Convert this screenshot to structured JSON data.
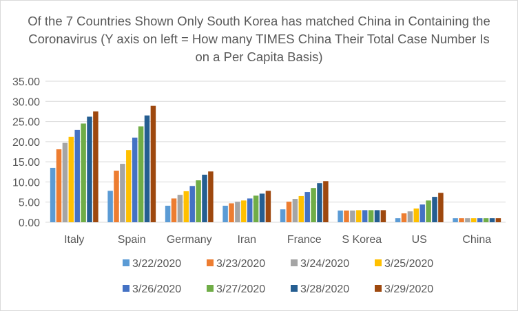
{
  "chart_data": {
    "type": "bar",
    "title": "Of the 7 Countries Shown Only South Korea has matched China in Containing the Coronavirus (Y axis on left = How many TIMES China Their Total Case Number Is on a Per Capita Basis)",
    "xlabel": "",
    "ylabel": "",
    "ylim": [
      0,
      35
    ],
    "yticks": [
      "0.00",
      "5.00",
      "10.00",
      "15.00",
      "20.00",
      "25.00",
      "30.00",
      "35.00"
    ],
    "grid": true,
    "legend_position": "bottom",
    "categories": [
      "Italy",
      "Spain",
      "Germany",
      "Iran",
      "France",
      "S Korea",
      "US",
      "China"
    ],
    "series": [
      {
        "name": "3/22/2020",
        "color": "#5b9bd5",
        "values": [
          13.5,
          7.8,
          4.1,
          4.1,
          3.2,
          2.9,
          1.0,
          1.0
        ]
      },
      {
        "name": "3/23/2020",
        "color": "#ed7d31",
        "values": [
          18.1,
          12.8,
          5.9,
          4.7,
          5.1,
          2.9,
          2.2,
          1.0
        ]
      },
      {
        "name": "3/24/2020",
        "color": "#a5a5a5",
        "values": [
          19.7,
          14.5,
          6.8,
          5.1,
          5.8,
          2.9,
          2.7,
          1.0
        ]
      },
      {
        "name": "3/25/2020",
        "color": "#ffc000",
        "values": [
          21.2,
          17.9,
          7.7,
          5.4,
          6.5,
          3.0,
          3.4,
          1.0
        ]
      },
      {
        "name": "3/26/2020",
        "color": "#4472c4",
        "values": [
          22.9,
          21.0,
          9.0,
          5.9,
          7.5,
          3.0,
          4.4,
          1.0
        ]
      },
      {
        "name": "3/27/2020",
        "color": "#70ad47",
        "values": [
          24.5,
          23.8,
          10.4,
          6.6,
          8.5,
          3.0,
          5.4,
          1.0
        ]
      },
      {
        "name": "3/28/2020",
        "color": "#255e91",
        "values": [
          26.2,
          26.5,
          11.8,
          7.1,
          9.7,
          3.0,
          6.3,
          1.0
        ]
      },
      {
        "name": "3/29/2020",
        "color": "#9e480e",
        "values": [
          27.5,
          28.9,
          12.6,
          7.8,
          10.2,
          3.0,
          7.3,
          1.0
        ]
      }
    ]
  }
}
